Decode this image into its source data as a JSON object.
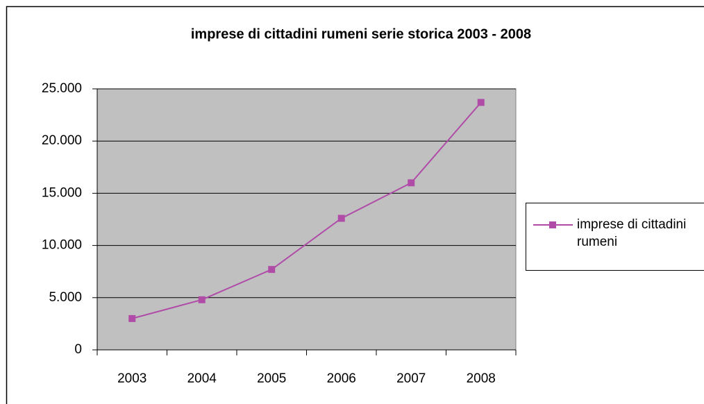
{
  "chart_data": {
    "type": "line",
    "title": "imprese di cittadini rumeni serie storica 2003 - 2008",
    "categories": [
      "2003",
      "2004",
      "2005",
      "2006",
      "2007",
      "2008"
    ],
    "series": [
      {
        "name": "imprese di cittadini rumeni",
        "color": "#b04ca8",
        "values": [
          3000,
          4800,
          7700,
          12600,
          16000,
          23700
        ]
      }
    ],
    "ylim": [
      0,
      25000
    ],
    "yticks": [
      0,
      {
        "value": 5000,
        "label": "5.000"
      },
      {
        "value": 10000,
        "label": "10.000"
      },
      {
        "value": 15000,
        "label": "15.000"
      },
      {
        "value": 20000,
        "label": "20.000"
      },
      {
        "value": 25000,
        "label": "25.000"
      }
    ],
    "grid": true,
    "legend": "right"
  }
}
